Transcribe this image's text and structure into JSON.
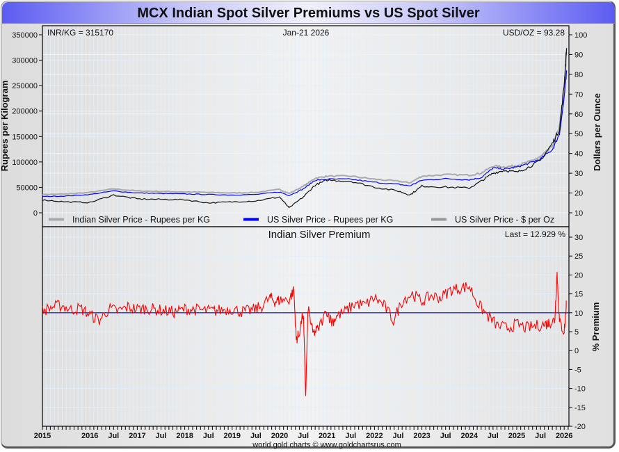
{
  "window": {
    "title": "MCX Indian Spot Silver Premiums vs US Spot Silver",
    "credit": "world gold charts © www.goldchartsrus.com"
  },
  "chart_data": [
    {
      "type": "line",
      "title": "MCX Indian Spot Silver Premiums vs US Spot Silver",
      "info": {
        "left": "INR/KG = 315170",
        "center": "Jan-21  2026",
        "right": "USD/OZ = 93.28"
      },
      "ylabel_left": "Rupees per Kilogram",
      "ylabel_right": "Dollars per Ounce",
      "ylim_left": [
        -15000,
        350000
      ],
      "ylim_right": [
        5,
        100
      ],
      "yticks_left": [
        "350000",
        "300000",
        "250000",
        "200000",
        "150000",
        "100000",
        "50000",
        "0"
      ],
      "yticks_left_values": [
        350000,
        300000,
        250000,
        200000,
        150000,
        100000,
        50000,
        0
      ],
      "yticks_right": [
        "100",
        "90",
        "80",
        "70",
        "60",
        "50",
        "40",
        "30",
        "20",
        "10"
      ],
      "yticks_right_values": [
        100,
        90,
        80,
        70,
        60,
        50,
        40,
        30,
        20,
        10
      ],
      "grid": true,
      "legend_position": "bottom",
      "x": [
        2015.0,
        2015.5,
        2016.0,
        2016.5,
        2017.0,
        2017.5,
        2018.0,
        2018.5,
        2019.0,
        2019.5,
        2020.0,
        2020.2,
        2020.5,
        2020.75,
        2021.0,
        2021.5,
        2022.0,
        2022.5,
        2022.75,
        2023.0,
        2023.5,
        2024.0,
        2024.25,
        2024.5,
        2024.75,
        2025.0,
        2025.25,
        2025.5,
        2025.75,
        2025.9,
        2026.0,
        2026.05
      ],
      "series": [
        {
          "name": "Indian Silver Price - Rupees per KG",
          "color": "#aaaaaa",
          "axis": "left",
          "values": [
            36000,
            37000,
            40000,
            47000,
            43000,
            42000,
            41000,
            40000,
            39000,
            40000,
            46000,
            38000,
            52000,
            68000,
            72000,
            72000,
            66000,
            62000,
            59000,
            72000,
            75000,
            74000,
            78000,
            92000,
            90000,
            93000,
            100000,
            110000,
            130000,
            170000,
            240000,
            315170
          ]
        },
        {
          "name": "US Silver Price - Rupees per KG",
          "color": "#0000ff",
          "axis": "left",
          "values": [
            32000,
            33000,
            36000,
            43000,
            39000,
            38000,
            37000,
            36000,
            35000,
            36000,
            41000,
            34000,
            47000,
            64000,
            66000,
            66000,
            60000,
            56000,
            53000,
            64000,
            67000,
            65000,
            69000,
            88000,
            86000,
            90000,
            97000,
            106000,
            124000,
            155000,
            225000,
            280000
          ]
        },
        {
          "name": "US Silver Price - $ per Oz",
          "color": "#111111",
          "axis": "right",
          "values": [
            16.5,
            15.5,
            15.2,
            19.0,
            17.0,
            16.8,
            16.6,
            15.0,
            15.5,
            16.0,
            18.0,
            12.5,
            18.0,
            24.0,
            26.5,
            26.0,
            23.0,
            21.0,
            19.0,
            23.5,
            23.0,
            22.5,
            26.0,
            30.0,
            31.5,
            30.5,
            33.0,
            36.5,
            45.0,
            52.0,
            75.0,
            93.28
          ]
        }
      ]
    },
    {
      "type": "line",
      "title": "Indian Silver Premium",
      "last": "Last = 12.929 %",
      "ylabel_right": "% Premium",
      "ylim": [
        -20,
        32
      ],
      "yticks": [
        "30",
        "25",
        "20",
        "15",
        "10",
        "5",
        "0",
        "-5",
        "-10",
        "-15",
        "-20"
      ],
      "yticks_values": [
        30,
        25,
        20,
        15,
        10,
        5,
        0,
        -5,
        -10,
        -15,
        -20
      ],
      "reference_line": 10,
      "grid": true,
      "x": [
        2015.0,
        2015.2,
        2015.4,
        2015.6,
        2015.8,
        2016.0,
        2016.2,
        2016.4,
        2016.6,
        2016.8,
        2017.0,
        2017.2,
        2017.4,
        2017.6,
        2017.8,
        2018.0,
        2018.2,
        2018.4,
        2018.6,
        2018.8,
        2019.0,
        2019.2,
        2019.4,
        2019.6,
        2019.8,
        2019.9,
        2020.0,
        2020.2,
        2020.3,
        2020.35,
        2020.4,
        2020.5,
        2020.55,
        2020.6,
        2020.7,
        2020.8,
        2021.0,
        2021.1,
        2021.2,
        2021.4,
        2021.6,
        2021.8,
        2022.0,
        2022.2,
        2022.4,
        2022.6,
        2022.8,
        2023.0,
        2023.2,
        2023.4,
        2023.6,
        2023.8,
        2024.0,
        2024.2,
        2024.4,
        2024.6,
        2024.8,
        2025.0,
        2025.2,
        2025.4,
        2025.6,
        2025.7,
        2025.8,
        2025.85,
        2025.9,
        2026.0,
        2026.05
      ],
      "series": [
        {
          "name": "Indian Silver Premium",
          "color": "#ff0000",
          "values": [
            10.5,
            11.5,
            12.0,
            10.8,
            11.2,
            9.5,
            8.0,
            11.0,
            10.5,
            11.5,
            11.0,
            11.2,
            10.8,
            10.5,
            10.2,
            11.0,
            10.9,
            10.6,
            10.5,
            10.8,
            11.0,
            10.3,
            10.6,
            11.5,
            14.0,
            13.0,
            13.3,
            13.5,
            16.0,
            3.0,
            4.0,
            10.0,
            -12.0,
            11.5,
            4.5,
            5.5,
            10.5,
            7.5,
            9.0,
            10.5,
            12.5,
            12.0,
            14.0,
            12.0,
            8.0,
            13.5,
            15.0,
            13.0,
            14.5,
            14.0,
            16.0,
            16.5,
            17.0,
            12.0,
            9.0,
            6.5,
            6.0,
            7.0,
            6.0,
            6.5,
            7.0,
            7.5,
            8.0,
            20.5,
            7.5,
            5.0,
            12.929
          ]
        }
      ]
    }
  ],
  "x_axis": {
    "ticks": [
      "2015",
      "2016",
      "Jul",
      "2017",
      "Jul",
      "2018",
      "Jul",
      "2019",
      "Jul",
      "2020",
      "Jul",
      "2021",
      "Jul",
      "2022",
      "Jul",
      "2023",
      "Jul",
      "2024",
      "Jul",
      "2025",
      "Jul",
      "2026"
    ],
    "tick_values": [
      2015.0,
      2016.0,
      2016.5,
      2017.0,
      2017.5,
      2018.0,
      2018.5,
      2019.0,
      2019.5,
      2020.0,
      2020.5,
      2021.0,
      2021.5,
      2022.0,
      2022.5,
      2023.0,
      2023.5,
      2024.0,
      2024.5,
      2025.0,
      2025.5,
      2026.0
    ],
    "range": [
      2015.0,
      2026.1
    ]
  }
}
